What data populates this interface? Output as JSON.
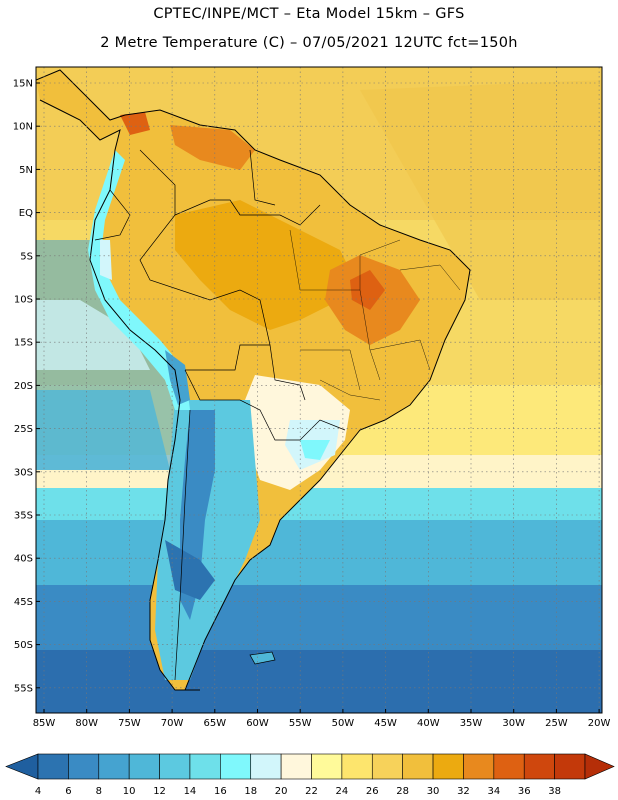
{
  "title_line1": "CPTEC/INPE/MCT  –   Eta Model 15km  –  GFS",
  "title_line2": "2 Metre Temperature (C) – 07/05/2021 12UTC fct=150h",
  "lat_labels": [
    "15N",
    "10N",
    "5N",
    "EQ",
    "5S",
    "10S",
    "15S",
    "20S",
    "25S",
    "30S",
    "35S",
    "40S",
    "45S",
    "50S",
    "55S"
  ],
  "lon_labels": [
    "85W",
    "80W",
    "75W",
    "70W",
    "65W",
    "60W",
    "55W",
    "50W",
    "45W",
    "40W",
    "35W",
    "30W",
    "25W",
    "20W"
  ],
  "colorbar": {
    "ticks": [
      "4",
      "6",
      "8",
      "10",
      "12",
      "14",
      "16",
      "18",
      "20",
      "22",
      "24",
      "26",
      "28",
      "30",
      "32",
      "34",
      "36",
      "38"
    ],
    "colors": [
      "#1f5f9f",
      "#2c73b0",
      "#3a8bc4",
      "#45a3d0",
      "#4fb7d8",
      "#5cc9e0",
      "#6ee0ea",
      "#7ff8fc",
      "#d2f6fb",
      "#fff7dc",
      "#fffa9a",
      "#fde56d",
      "#f7d25a",
      "#f1bf3c",
      "#ecaa10",
      "#e8891e",
      "#de6112",
      "#cf470d",
      "#c3390a",
      "#b52e08"
    ]
  }
}
